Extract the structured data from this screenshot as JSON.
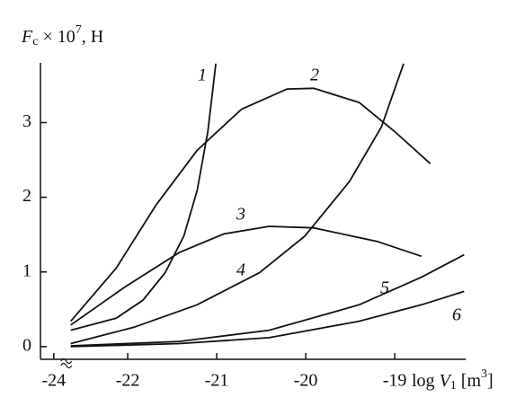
{
  "chart_data": {
    "type": "line",
    "y_label": {
      "symbol": "F",
      "sub": "c",
      "mid": " × 10",
      "sup": "7",
      "end": ", H"
    },
    "x_label": {
      "pre": "log ",
      "symbol": "V",
      "sub": "1",
      "mid": " [m",
      "sup": "3",
      "end": "]"
    },
    "xlim": [
      -24.15,
      -18.2
    ],
    "x_break": [
      -23.9,
      -22.67
    ],
    "xticks": [
      -24,
      -22,
      -21,
      -20,
      -19
    ],
    "ylim": [
      -0.17,
      3.8
    ],
    "yticks": [
      0,
      1,
      2,
      3
    ],
    "series": [
      {
        "name": "1",
        "color": "#111111",
        "x": [
          -22.64,
          -22.13,
          -21.83,
          -21.58,
          -21.37,
          -21.22,
          -21.1,
          -21.01
        ],
        "values": [
          0.22,
          0.38,
          0.62,
          0.99,
          1.48,
          2.09,
          2.88,
          3.79
        ]
      },
      {
        "name": "2",
        "color": "#111111",
        "x": [
          -22.64,
          -22.13,
          -21.68,
          -21.22,
          -20.72,
          -20.21,
          -19.91,
          -19.4,
          -19.0,
          -18.6
        ],
        "values": [
          0.34,
          1.05,
          1.9,
          2.63,
          3.18,
          3.45,
          3.46,
          3.27,
          2.88,
          2.45
        ]
      },
      {
        "name": "3",
        "color": "#111111",
        "x": [
          -22.64,
          -22.03,
          -21.42,
          -20.92,
          -20.41,
          -19.91,
          -19.2,
          -18.7
        ],
        "values": [
          0.29,
          0.8,
          1.26,
          1.51,
          1.61,
          1.59,
          1.41,
          1.21
        ]
      },
      {
        "name": "4",
        "color": "#111111",
        "x": [
          -22.64,
          -21.93,
          -21.22,
          -20.52,
          -20.01,
          -19.51,
          -19.15,
          -18.9
        ],
        "values": [
          0.04,
          0.26,
          0.56,
          0.99,
          1.48,
          2.21,
          2.94,
          3.79
        ]
      },
      {
        "name": "5",
        "color": "#111111",
        "x": [
          -22.64,
          -21.42,
          -20.41,
          -19.4,
          -18.7,
          -18.22
        ],
        "values": [
          0.01,
          0.07,
          0.22,
          0.56,
          0.93,
          1.23
        ]
      },
      {
        "name": "6",
        "color": "#111111",
        "x": [
          -22.64,
          -21.42,
          -20.41,
          -19.4,
          -18.7,
          -18.22
        ],
        "values": [
          0.0,
          0.04,
          0.12,
          0.34,
          0.56,
          0.74
        ]
      }
    ]
  }
}
